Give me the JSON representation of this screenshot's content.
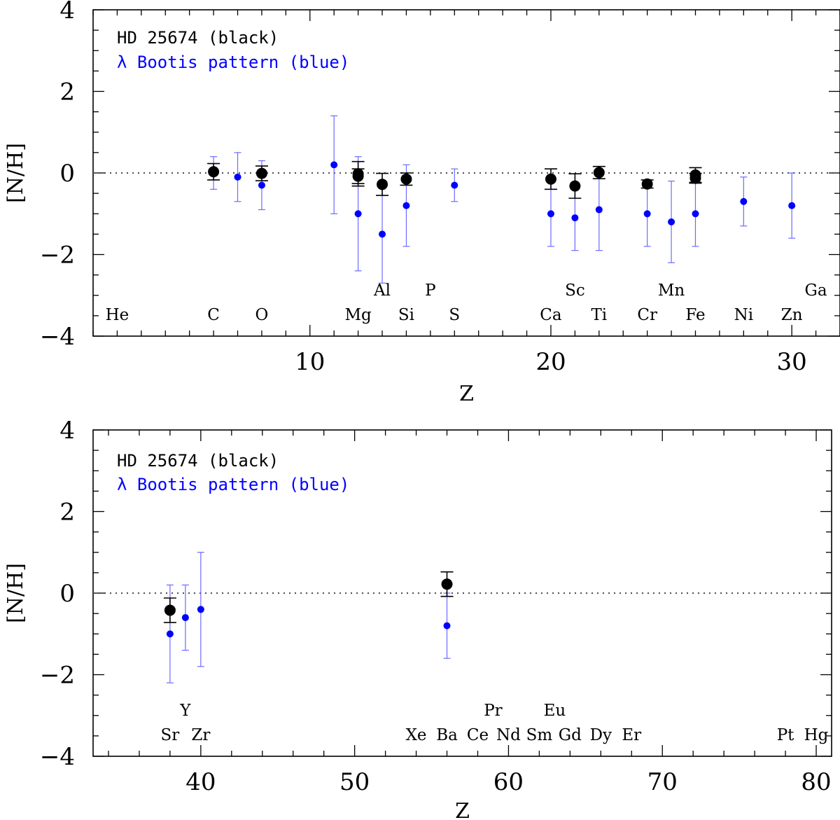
{
  "chart_data": [
    {
      "type": "scatter",
      "xlabel": "Z",
      "ylabel": "[N/H]",
      "xlim": [
        1,
        32
      ],
      "ylim": [
        -4,
        4
      ],
      "xticks": [
        10,
        20,
        30
      ],
      "yticks": [
        -4,
        -2,
        0,
        2,
        4
      ],
      "ytick_labels": [
        "−4",
        "−2",
        "0",
        "2",
        "4"
      ],
      "reference_line": 0,
      "legend": [
        "HD 25674 (black)",
        "λ Bootis pattern (blue)"
      ],
      "legend_placement": "top-left",
      "series": [
        {
          "name": "HD 25674",
          "color": "#000000",
          "points": [
            {
              "z": 6,
              "v": 0.03,
              "err": 0.2
            },
            {
              "z": 8,
              "v": -0.01,
              "err": 0.18
            },
            {
              "z": 12,
              "v": -0.02,
              "err": 0.3
            },
            {
              "z": 12,
              "v": -0.08,
              "err": 0.18
            },
            {
              "z": 13,
              "v": -0.28,
              "err": 0.27
            },
            {
              "z": 14,
              "v": -0.15,
              "err": 0.15
            },
            {
              "z": 20,
              "v": -0.15,
              "err": 0.25
            },
            {
              "z": 21,
              "v": -0.32,
              "err": 0.3
            },
            {
              "z": 22,
              "v": 0.01,
              "err": 0.15
            },
            {
              "z": 24,
              "v": -0.27,
              "err": 0.1
            },
            {
              "z": 26,
              "v": -0.05,
              "err": 0.18
            },
            {
              "z": 26,
              "v": -0.13,
              "err": 0.12
            }
          ]
        },
        {
          "name": "λ Bootis pattern",
          "color": "#0000ff",
          "points": [
            {
              "z": 6,
              "v": 0.0,
              "err": 0.4
            },
            {
              "z": 7,
              "v": -0.1,
              "err": 0.6
            },
            {
              "z": 8,
              "v": -0.3,
              "err": 0.6
            },
            {
              "z": 11,
              "v": 0.2,
              "err": 1.2
            },
            {
              "z": 12,
              "v": -1.0,
              "err": 1.4
            },
            {
              "z": 13,
              "v": -1.5,
              "err": 1.2
            },
            {
              "z": 14,
              "v": -0.8,
              "err": 1.0
            },
            {
              "z": 16,
              "v": -0.3,
              "err": 0.4
            },
            {
              "z": 20,
              "v": -1.0,
              "err": 0.8
            },
            {
              "z": 21,
              "v": -1.1,
              "err": 0.8
            },
            {
              "z": 22,
              "v": -0.9,
              "err": 1.0
            },
            {
              "z": 24,
              "v": -1.0,
              "err": 0.8
            },
            {
              "z": 25,
              "v": -1.2,
              "err": 1.0
            },
            {
              "z": 26,
              "v": -1.0,
              "err": 0.8
            },
            {
              "z": 28,
              "v": -0.7,
              "err": 0.6
            },
            {
              "z": 30,
              "v": -0.8,
              "err": 0.8
            }
          ]
        }
      ],
      "element_labels": [
        {
          "text": "He",
          "z": 2,
          "row": "low"
        },
        {
          "text": "C",
          "z": 6,
          "row": "low"
        },
        {
          "text": "O",
          "z": 8,
          "row": "low"
        },
        {
          "text": "Mg",
          "z": 12,
          "row": "low"
        },
        {
          "text": "Al",
          "z": 13,
          "row": "high"
        },
        {
          "text": "Si",
          "z": 14,
          "row": "low"
        },
        {
          "text": "P",
          "z": 15,
          "row": "high"
        },
        {
          "text": "S",
          "z": 16,
          "row": "low"
        },
        {
          "text": "Ca",
          "z": 20,
          "row": "low"
        },
        {
          "text": "Sc",
          "z": 21,
          "row": "high"
        },
        {
          "text": "Ti",
          "z": 22,
          "row": "low"
        },
        {
          "text": "Cr",
          "z": 24,
          "row": "low"
        },
        {
          "text": "Mn",
          "z": 25,
          "row": "high"
        },
        {
          "text": "Fe",
          "z": 26,
          "row": "low"
        },
        {
          "text": "Ni",
          "z": 28,
          "row": "low"
        },
        {
          "text": "Zn",
          "z": 30,
          "row": "low"
        },
        {
          "text": "Ga",
          "z": 31,
          "row": "high"
        }
      ]
    },
    {
      "type": "scatter",
      "xlabel": "Z",
      "ylabel": "[N/H]",
      "xlim": [
        33,
        81
      ],
      "ylim": [
        -4,
        4
      ],
      "xticks": [
        40,
        50,
        60,
        70,
        80
      ],
      "yticks": [
        -4,
        -2,
        0,
        2,
        4
      ],
      "ytick_labels": [
        "−4",
        "−2",
        "0",
        "2",
        "4"
      ],
      "reference_line": 0,
      "legend": [
        "HD 25674 (black)",
        "λ Bootis pattern (blue)"
      ],
      "legend_placement": "top-left",
      "series": [
        {
          "name": "HD 25674",
          "color": "#000000",
          "points": [
            {
              "z": 38,
              "v": -0.42,
              "err": 0.3
            },
            {
              "z": 56,
              "v": 0.22,
              "err": 0.3
            }
          ]
        },
        {
          "name": "λ Bootis pattern",
          "color": "#0000ff",
          "points": [
            {
              "z": 38,
              "v": -1.0,
              "err": 1.2
            },
            {
              "z": 39,
              "v": -0.6,
              "err": 0.8
            },
            {
              "z": 40,
              "v": -0.4,
              "err": 1.4
            },
            {
              "z": 56,
              "v": -0.8,
              "err": 0.8
            }
          ]
        }
      ],
      "element_labels": [
        {
          "text": "Sr",
          "z": 38,
          "row": "low"
        },
        {
          "text": "Y",
          "z": 39,
          "row": "high"
        },
        {
          "text": "Zr",
          "z": 40,
          "row": "low"
        },
        {
          "text": "Xe",
          "z": 54,
          "row": "low"
        },
        {
          "text": "Ba",
          "z": 56,
          "row": "low"
        },
        {
          "text": "Ce",
          "z": 58,
          "row": "low"
        },
        {
          "text": "Pr",
          "z": 59,
          "row": "high"
        },
        {
          "text": "Nd",
          "z": 60,
          "row": "low"
        },
        {
          "text": "Sm",
          "z": 62,
          "row": "low"
        },
        {
          "text": "Eu",
          "z": 63,
          "row": "high"
        },
        {
          "text": "Gd",
          "z": 64,
          "row": "low"
        },
        {
          "text": "Dy",
          "z": 66,
          "row": "low"
        },
        {
          "text": "Er",
          "z": 68,
          "row": "low"
        },
        {
          "text": "Pt",
          "z": 78,
          "row": "low"
        },
        {
          "text": "Hg",
          "z": 80,
          "row": "low"
        }
      ]
    }
  ],
  "colors": {
    "primary": "#000000",
    "lambda_boo": "#0000ff",
    "lambda_boo_error": "#6b6bff",
    "reference": "#555555"
  }
}
